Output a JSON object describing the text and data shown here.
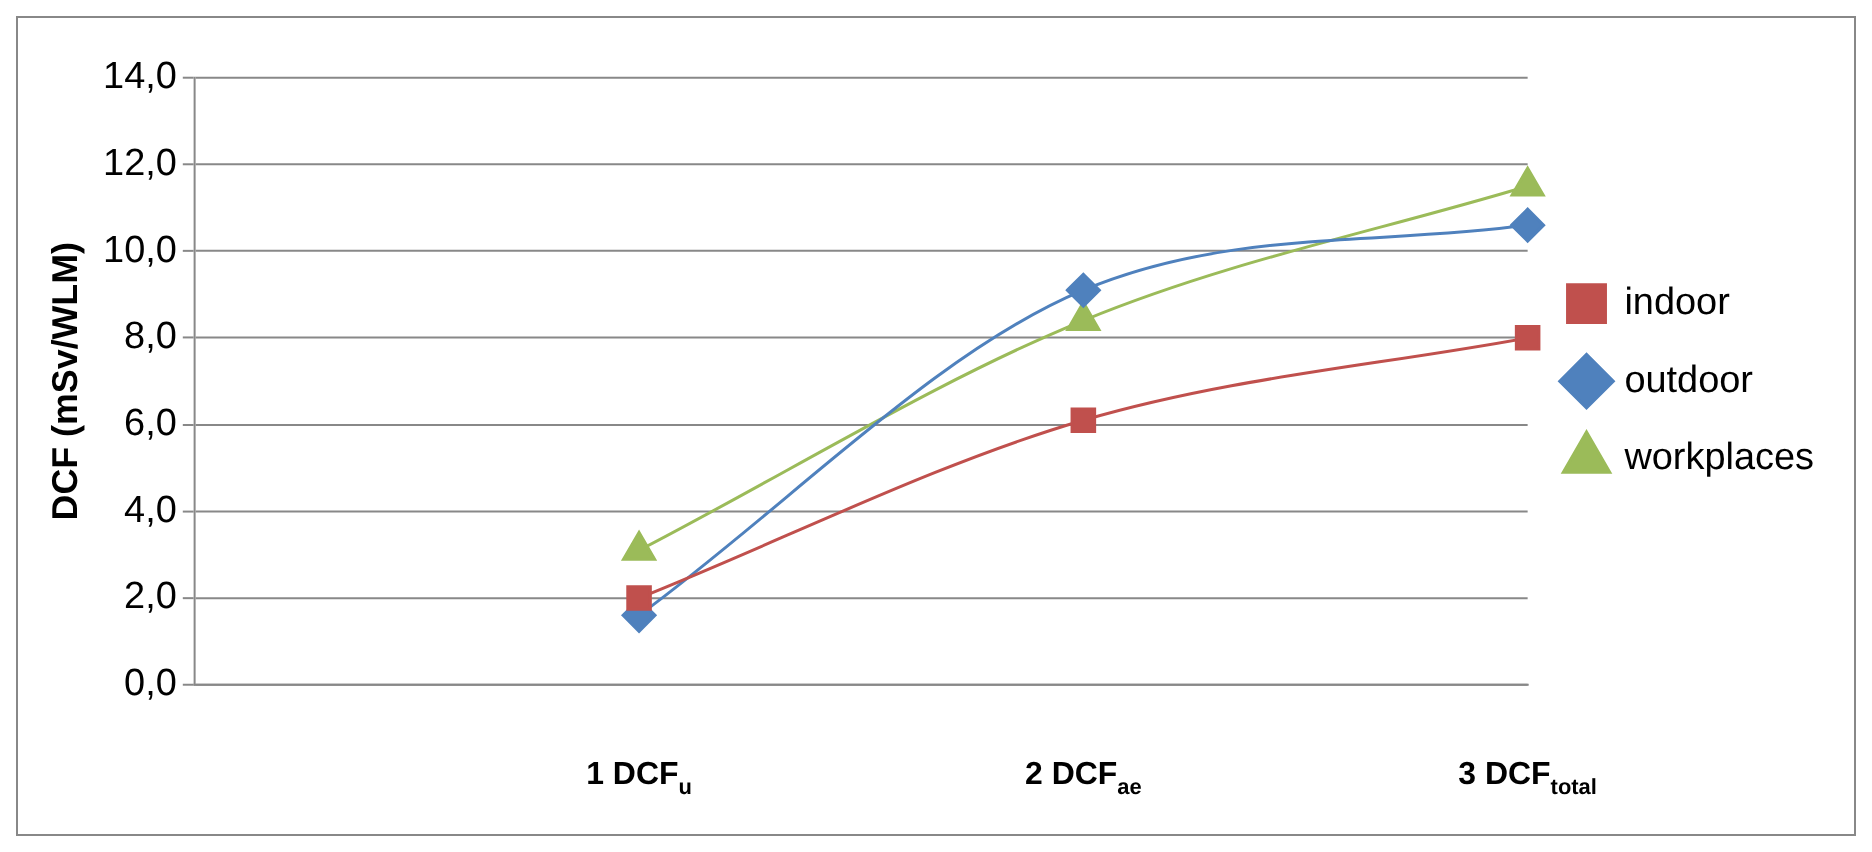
{
  "chart_data": {
    "type": "line",
    "ylabel": "DCF (mSv/WLM)",
    "categories": [
      null,
      "1 DCF$_{u}$",
      "2 DCF$_{ae}$",
      "3 DCF$_{total}$"
    ],
    "series": [
      {
        "name": "indoor",
        "color": "#c0504d",
        "marker": "square",
        "values": [
          null,
          2.0,
          6.1,
          8.0
        ]
      },
      {
        "name": "outdoor",
        "color": "#4f81bd",
        "marker": "diamond",
        "values": [
          null,
          1.6,
          9.1,
          10.6
        ]
      },
      {
        "name": "workplaces",
        "color": "#9bbb59",
        "marker": "triangle",
        "values": [
          null,
          3.1,
          8.4,
          11.5
        ]
      }
    ],
    "ylim": [
      0,
      14
    ],
    "yticks": [
      {
        "value": 0,
        "label": "0,0"
      },
      {
        "value": 2,
        "label": "2,0"
      },
      {
        "value": 4,
        "label": "4,0"
      },
      {
        "value": 6,
        "label": "6,0"
      },
      {
        "value": 8,
        "label": "8,0"
      },
      {
        "value": 10,
        "label": "10,0"
      },
      {
        "value": 12,
        "label": "12,0"
      },
      {
        "value": 14,
        "label": "14,0"
      }
    ],
    "grid": "y",
    "legend": "right"
  }
}
